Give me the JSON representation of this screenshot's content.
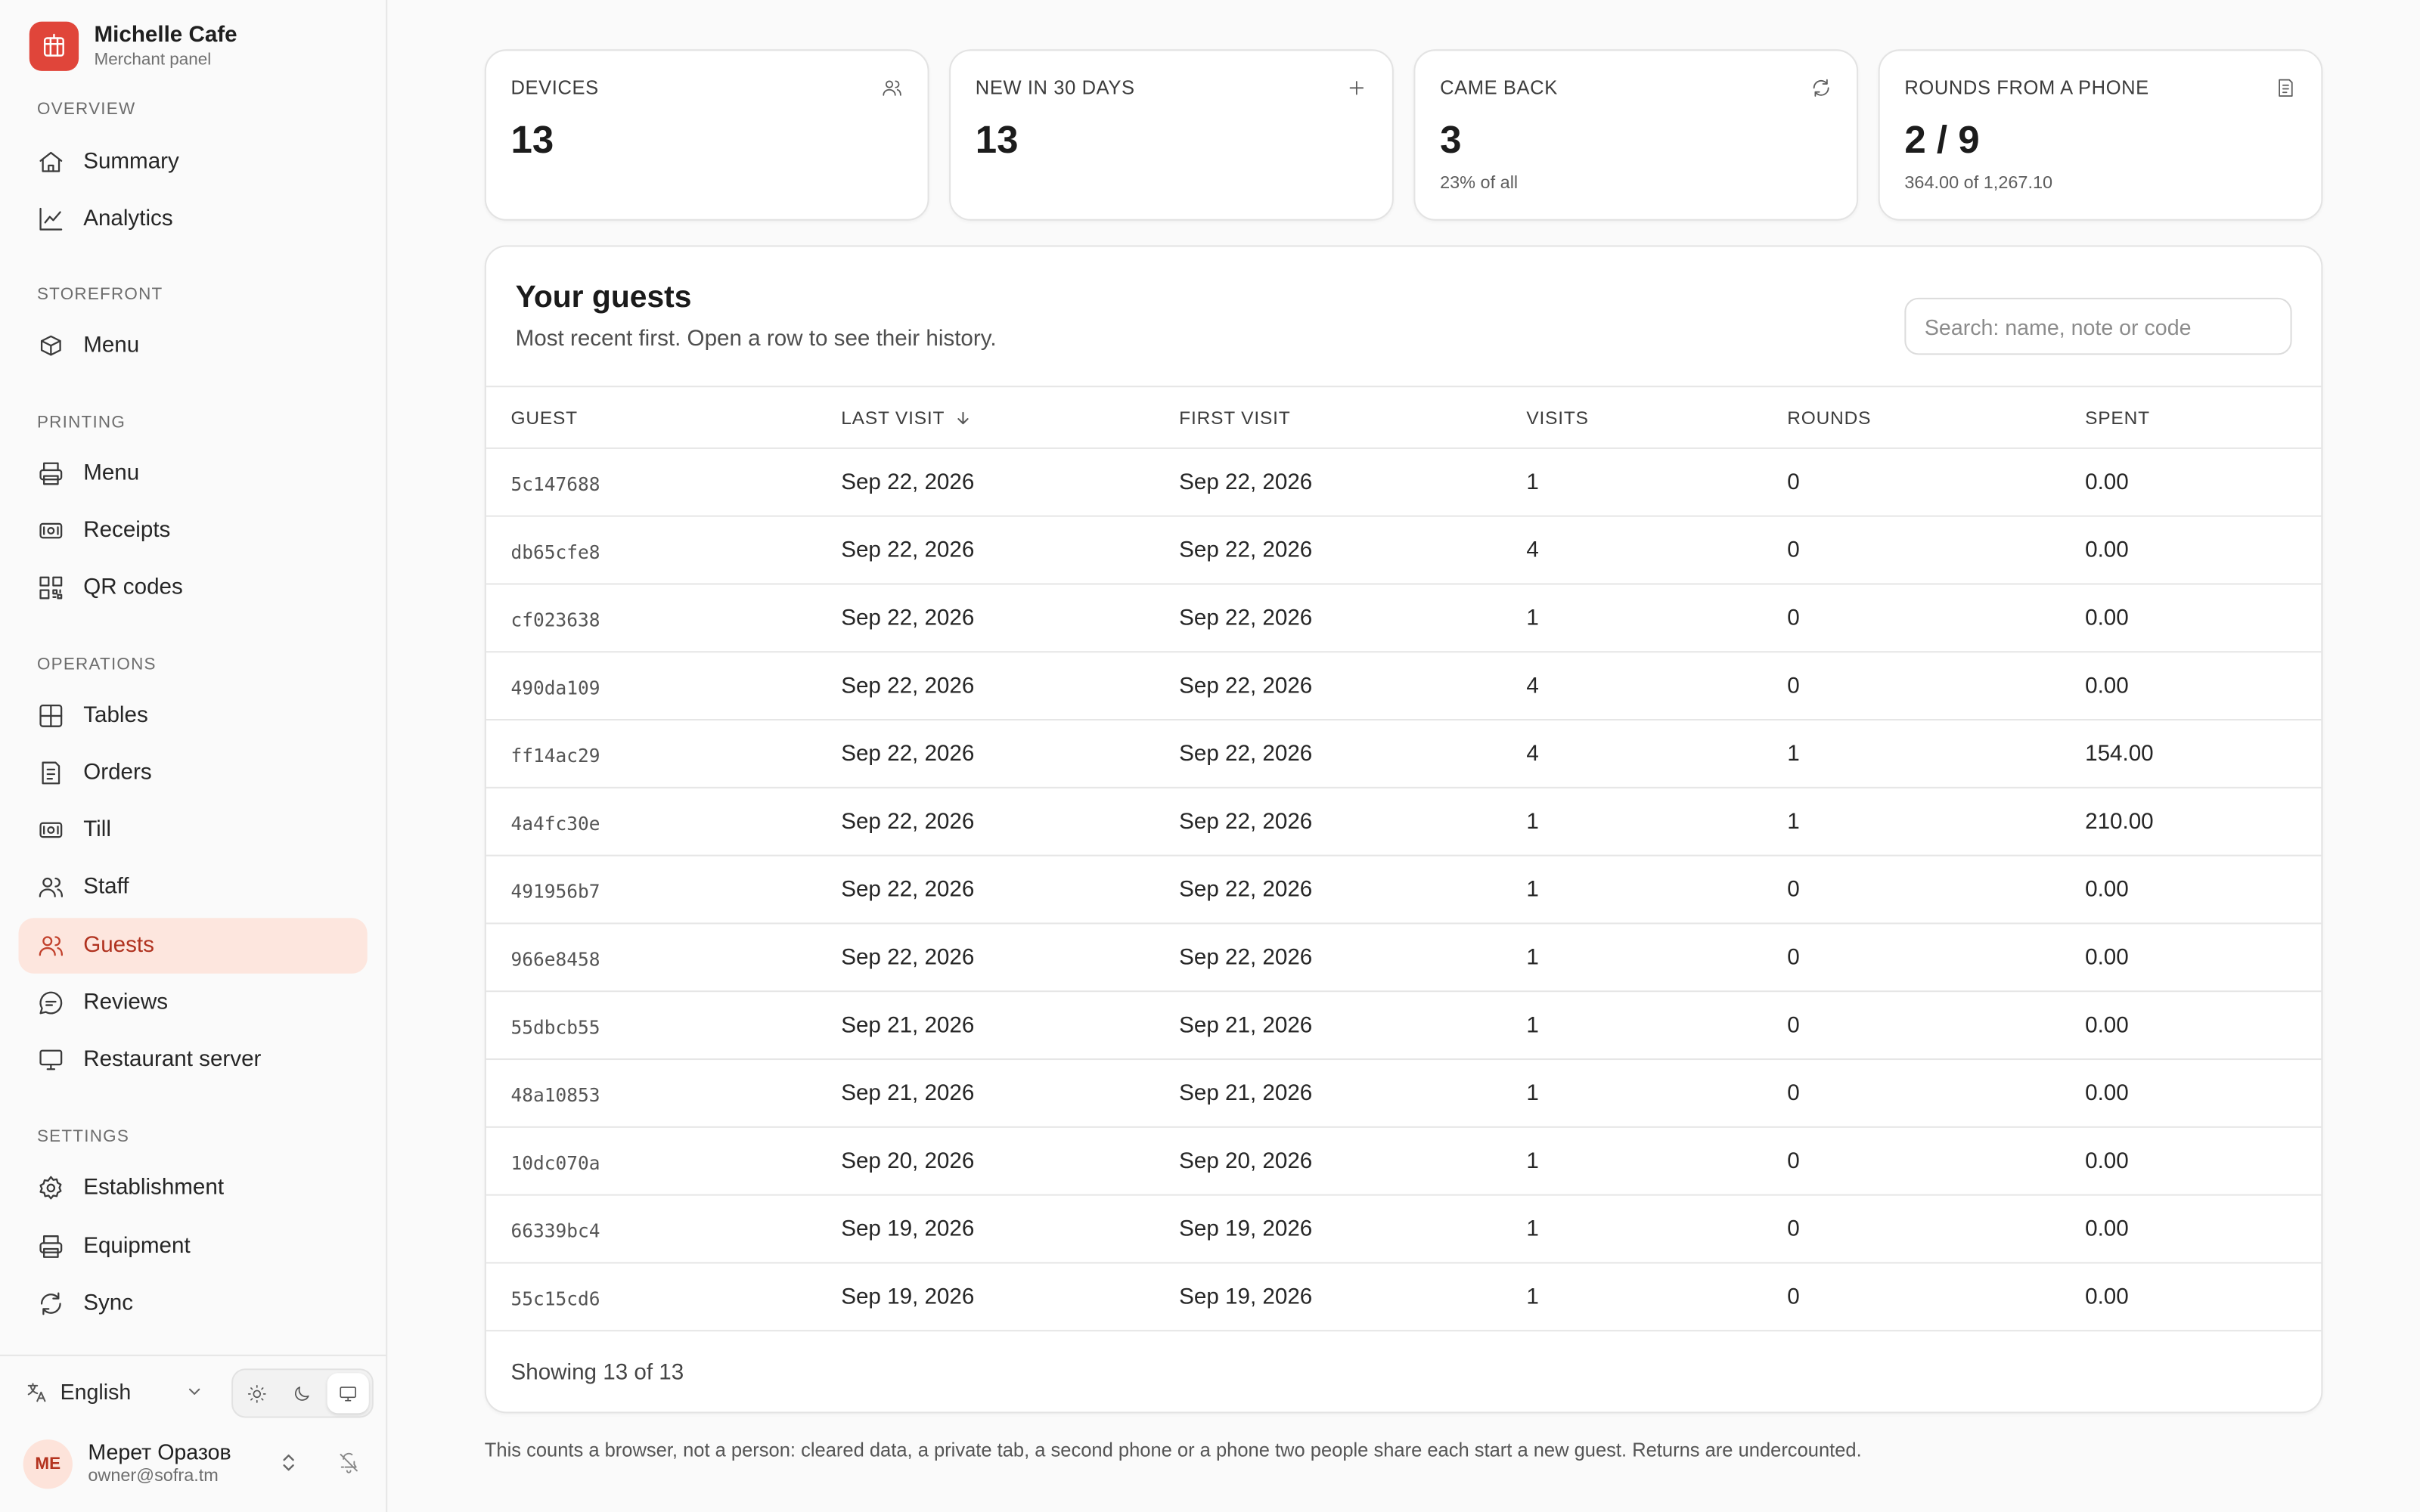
{
  "brand": {
    "name": "Michelle Cafe",
    "subtitle": "Merchant panel"
  },
  "sections": {
    "overview": "OVERVIEW",
    "storefront": "STOREFRONT",
    "printing": "PRINTING",
    "operations": "OPERATIONS",
    "settings": "SETTINGS"
  },
  "nav": {
    "summary": "Summary",
    "analytics": "Analytics",
    "menu": "Menu",
    "print_menu": "Menu",
    "receipts": "Receipts",
    "qr_codes": "QR codes",
    "tables": "Tables",
    "orders": "Orders",
    "till": "Till",
    "staff": "Staff",
    "guests": "Guests",
    "reviews": "Reviews",
    "restaurant_server": "Restaurant server",
    "establishment": "Establishment",
    "equipment": "Equipment",
    "sync": "Sync"
  },
  "active_nav": "guests",
  "footer": {
    "language": "English",
    "theme_selected": "system",
    "user": {
      "initials": "ME",
      "name": "Мерет Оразов",
      "email": "owner@sofra.tm"
    }
  },
  "stats": [
    {
      "label": "DEVICES",
      "value": "13",
      "note": "",
      "icon": "users-icon"
    },
    {
      "label": "NEW IN 30 DAYS",
      "value": "13",
      "note": "",
      "icon": "plus-icon"
    },
    {
      "label": "CAME BACK",
      "value": "3",
      "note": "23% of all",
      "icon": "refresh-icon"
    },
    {
      "label": "ROUNDS FROM A PHONE",
      "value": "2 / 9",
      "note": "364.00 of 1,267.10",
      "icon": "receipt-icon"
    }
  ],
  "guests": {
    "title": "Your guests",
    "subtitle": "Most recent first. Open a row to see their history.",
    "search_placeholder": "Search: name, note or code",
    "columns": [
      "GUEST",
      "LAST VISIT",
      "FIRST VISIT",
      "VISITS",
      "ROUNDS",
      "SPENT"
    ],
    "sort_column": "LAST VISIT",
    "rows": [
      [
        "5c147688",
        "Sep 22, 2026",
        "Sep 22, 2026",
        "1",
        "0",
        "0.00"
      ],
      [
        "db65cfe8",
        "Sep 22, 2026",
        "Sep 22, 2026",
        "4",
        "0",
        "0.00"
      ],
      [
        "cf023638",
        "Sep 22, 2026",
        "Sep 22, 2026",
        "1",
        "0",
        "0.00"
      ],
      [
        "490da109",
        "Sep 22, 2026",
        "Sep 22, 2026",
        "4",
        "0",
        "0.00"
      ],
      [
        "ff14ac29",
        "Sep 22, 2026",
        "Sep 22, 2026",
        "4",
        "1",
        "154.00"
      ],
      [
        "4a4fc30e",
        "Sep 22, 2026",
        "Sep 22, 2026",
        "1",
        "1",
        "210.00"
      ],
      [
        "491956b7",
        "Sep 22, 2026",
        "Sep 22, 2026",
        "1",
        "0",
        "0.00"
      ],
      [
        "966e8458",
        "Sep 22, 2026",
        "Sep 22, 2026",
        "1",
        "0",
        "0.00"
      ],
      [
        "55dbcb55",
        "Sep 21, 2026",
        "Sep 21, 2026",
        "1",
        "0",
        "0.00"
      ],
      [
        "48a10853",
        "Sep 21, 2026",
        "Sep 21, 2026",
        "1",
        "0",
        "0.00"
      ],
      [
        "10dc070a",
        "Sep 20, 2026",
        "Sep 20, 2026",
        "1",
        "0",
        "0.00"
      ],
      [
        "66339bc4",
        "Sep 19, 2026",
        "Sep 19, 2026",
        "1",
        "0",
        "0.00"
      ],
      [
        "55c15cd6",
        "Sep 19, 2026",
        "Sep 19, 2026",
        "1",
        "0",
        "0.00"
      ]
    ],
    "footer": "Showing 13 of 13"
  },
  "disclaimer": "This counts a browser, not a person: cleared data, a private tab, a second phone or a phone two people share each start a new guest. Returns are undercounted.",
  "colors": {
    "accent": "#e0453a",
    "active_bg": "#fde6de",
    "active_text": "#b0321f"
  }
}
